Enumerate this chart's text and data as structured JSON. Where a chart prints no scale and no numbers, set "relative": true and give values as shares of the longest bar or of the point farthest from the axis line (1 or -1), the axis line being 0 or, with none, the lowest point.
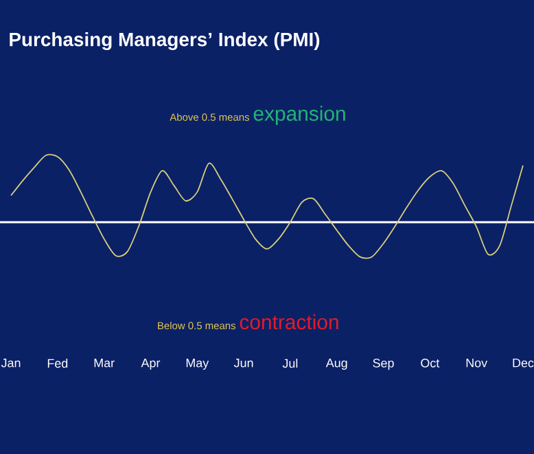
{
  "chart_data": {
    "type": "line",
    "title": "Purchasing Managers’ Index (PMI)",
    "annotations": [
      "Above 0.5 means",
      "expansion",
      "Below 0.5 means",
      "contraction"
    ],
    "categories": [
      "Jan",
      null,
      null,
      null,
      "Fed",
      null,
      null,
      null,
      "Mar",
      null,
      null,
      null,
      "Apr",
      null,
      null,
      null,
      "May",
      null,
      null,
      null,
      "Jun",
      null,
      null,
      null,
      "Jul",
      null,
      null,
      null,
      "Aug",
      null,
      null,
      null,
      "Sep",
      null,
      null,
      null,
      "Oct",
      null,
      null,
      null,
      "Nov",
      null,
      null,
      null,
      "Dec"
    ],
    "values": [
      0.4,
      0.62,
      0.82,
      1.0,
      0.98,
      0.78,
      0.45,
      0.09,
      -0.25,
      -0.5,
      -0.44,
      -0.05,
      0.45,
      0.77,
      0.55,
      0.32,
      0.45,
      0.88,
      0.65,
      0.35,
      0.04,
      -0.25,
      -0.4,
      -0.25,
      0,
      0.3,
      0.35,
      0.12,
      -0.12,
      -0.35,
      -0.52,
      -0.52,
      -0.32,
      -0.06,
      0.22,
      0.48,
      0.68,
      0.77,
      0.58,
      0.25,
      -0.07,
      -0.48,
      -0.35,
      0.25,
      0.85
    ],
    "color": "#d9cf7c",
    "relative": true
  }
}
